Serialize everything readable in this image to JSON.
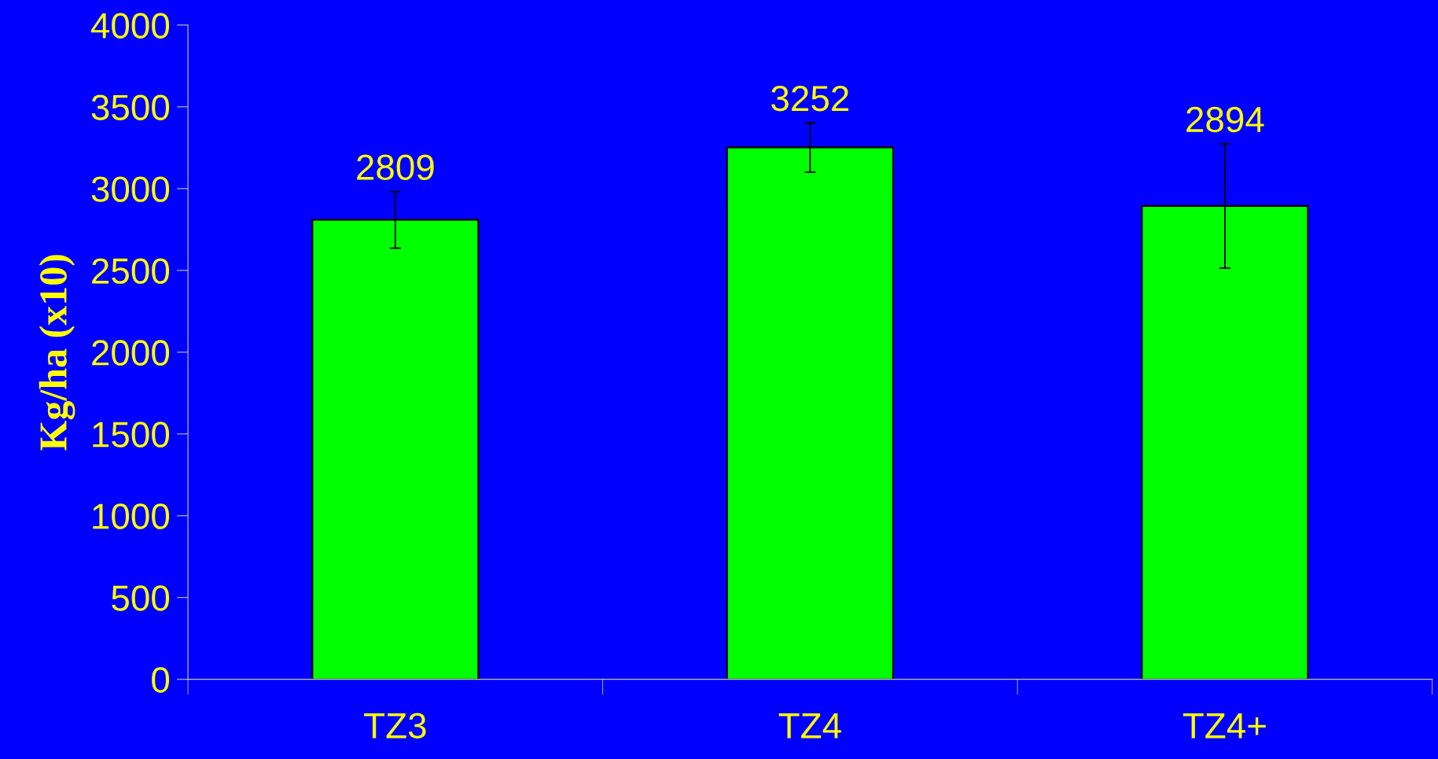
{
  "chart_data": {
    "type": "bar",
    "ylabel": "Kg/ha (x10)",
    "categories": [
      "TZ3",
      "TZ4",
      "TZ4+"
    ],
    "values": [
      2809,
      3252,
      2894
    ],
    "color": "#00ff00",
    "errors": [
      173,
      151,
      380
    ],
    "ylim": [
      0,
      4000
    ],
    "yticks": [
      0,
      500,
      1000,
      1500,
      2000,
      2500,
      3000,
      3500,
      4000
    ],
    "data_labels": true,
    "grid": false,
    "legend": false
  }
}
